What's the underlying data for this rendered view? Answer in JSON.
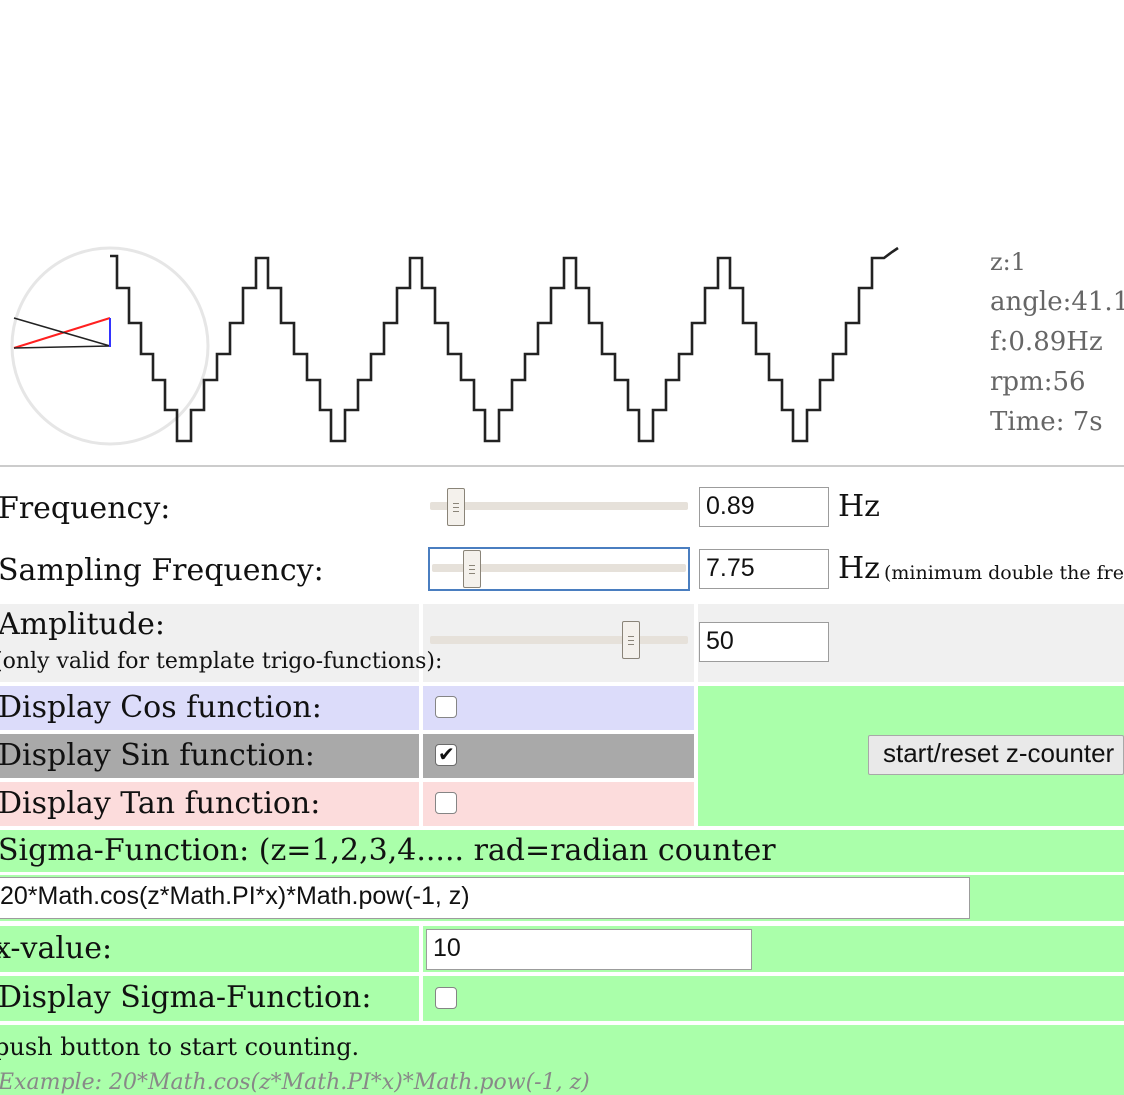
{
  "stats": {
    "z": "z:1",
    "angle": "angle:41.1",
    "frequency": "f:0.89Hz",
    "rpm": "rpm:56",
    "time": "Time: 7s"
  },
  "controls": {
    "frequency": {
      "label": "Frequency:",
      "value": "0.89",
      "unit": "Hz",
      "slider_level": 0.07
    },
    "sampling": {
      "label": "Sampling Frequency:",
      "value": "7.75",
      "unit": "Hz",
      "note": "(minimum double the frequen",
      "slider_level": 0.13
    },
    "amplitude": {
      "label": "Amplitude:",
      "sublabel": "(only valid for template trigo-functions):",
      "value": "50",
      "slider_level": 0.8
    }
  },
  "display": {
    "cos_label": "Display Cos function:",
    "sin_label": "Display Sin function:",
    "tan_label": "Display Tan function:",
    "cos_checked": false,
    "sin_checked": true,
    "tan_checked": false,
    "z_counter_button": "start/reset z-counter"
  },
  "sigma": {
    "header": "Sigma-Function: (z=1,2,3,4..... rad=radian counter",
    "expression": "20*Math.cos(z*Math.PI*x)*Math.pow(-1, z)",
    "x_label": "x-value:",
    "x_value": "10",
    "display_label": "Display Sigma-Function:",
    "display_checked": false,
    "hint": "push button to start counting.",
    "example": "Example: 20*Math.cos(z*Math.PI*x)*Math.pow(-1, z)"
  },
  "colors": {
    "cos_row": "#dcdcfa",
    "sin_row": "#a9a9a9",
    "tan_row": "#fcdcdc",
    "sigma_bg": "#aaffaa",
    "amplitude_row": "#f0f0f0",
    "waveform": "#222222",
    "radius_line": "#ff2020",
    "sin_segment": "#3333ff"
  }
}
